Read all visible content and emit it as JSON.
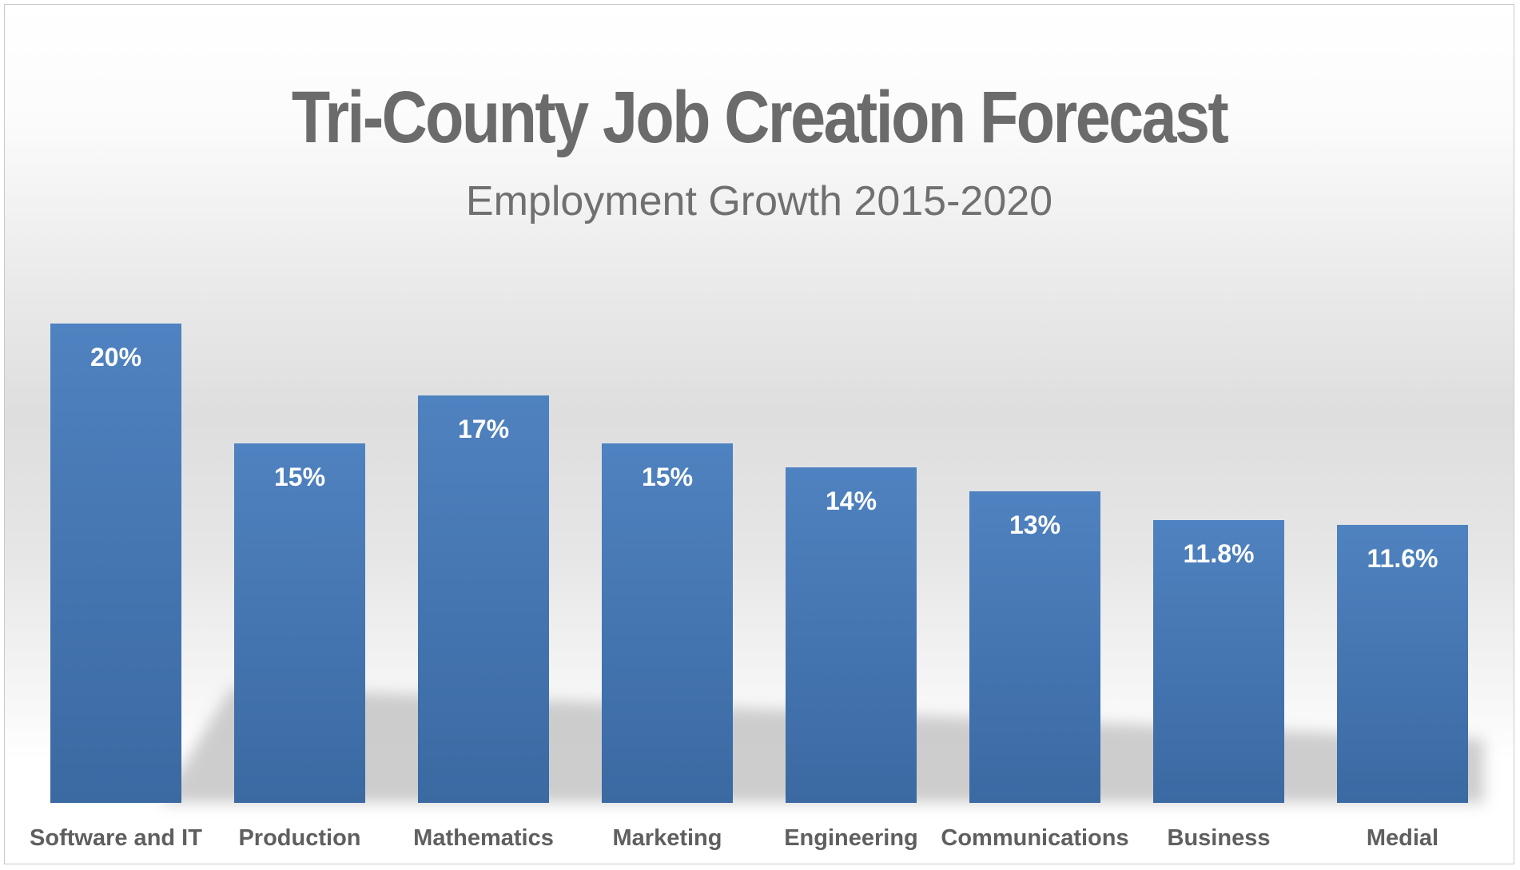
{
  "chart_data": {
    "type": "bar",
    "title": "Tri-County Job Creation Forecast",
    "subtitle": "Employment Growth 2015-2020",
    "categories": [
      "Software and IT",
      "Production",
      "Mathematics",
      "Marketing",
      "Engineering",
      "Communications",
      "Business",
      "Medial"
    ],
    "values": [
      20,
      15,
      17,
      15,
      14,
      13,
      11.8,
      11.6
    ],
    "labels": [
      "20%",
      "15%",
      "17%",
      "15%",
      "14%",
      "13%",
      "11.8%",
      "11.6%"
    ],
    "ylim": [
      0,
      20
    ],
    "grid": false,
    "legend": "none",
    "colors": {
      "bar_top": "#4f82c0",
      "bar_bottom": "#3c6aa3",
      "shadow": "#bdbdbd",
      "title": "#6b6b6b",
      "category_text": "#5f5f5f",
      "value_text": "#ffffff"
    }
  }
}
